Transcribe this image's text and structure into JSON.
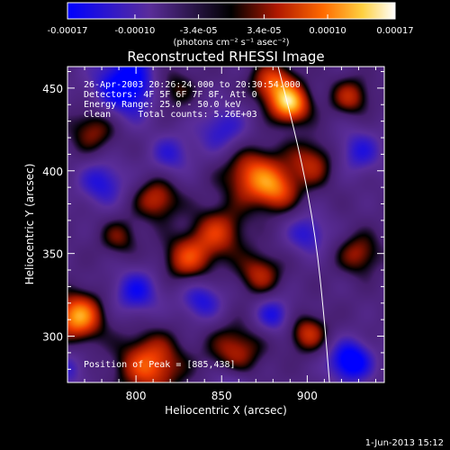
{
  "colorbar": {
    "tick_labels": [
      "-0.00017",
      "-0.00010",
      "-3.4e-05",
      "3.4e-05",
      "0.00010",
      "0.00017"
    ],
    "tick_values": [
      -0.00017,
      -0.0001,
      -3.4e-05,
      3.4e-05,
      0.0001,
      0.00017
    ],
    "range": [
      -0.00017,
      0.00017
    ],
    "units_label": "(photons cm⁻² s⁻¹ asec⁻²)"
  },
  "plot": {
    "title": "Reconstructed RHESSI Image",
    "info_lines": [
      "26-Apr-2003 20:26:24.000 to 20:30:54.000",
      "Detectors: 4F 5F 6F 7F 8F, Att 0",
      "Energy Range: 25.0 - 50.0 keV",
      "Clean     Total counts: 5.26E+03"
    ],
    "peak_label": "Position of Peak = [885,438]"
  },
  "chart_data": {
    "type": "heatmap",
    "title": "Reconstructed RHESSI Image",
    "xlabel": "Heliocentric X (arcsec)",
    "ylabel": "Heliocentric Y (arcsec)",
    "xlim": [
      760,
      945
    ],
    "ylim": [
      272,
      463
    ],
    "x_ticks": [
      800,
      850,
      900
    ],
    "x_tick_labels": [
      "800",
      "850",
      "900"
    ],
    "y_ticks": [
      300,
      350,
      400,
      450
    ],
    "y_tick_labels": [
      "300",
      "350",
      "400",
      "450"
    ],
    "peak_position": [
      885,
      438
    ],
    "limb_curve": [
      [
        883,
        463
      ],
      [
        896,
        410
      ],
      [
        905,
        360
      ],
      [
        910,
        310
      ],
      [
        913,
        272
      ]
    ],
    "colormap": [
      "#0000ff",
      "#5a2d9a",
      "#000000",
      "#b01800",
      "#ff6a00",
      "#ffd040",
      "#ffffff"
    ],
    "sources": [
      {
        "x": 890,
        "y": 440,
        "amp": 1.0,
        "r": 8
      },
      {
        "x": 880,
        "y": 453,
        "amp": 0.75,
        "r": 9
      },
      {
        "x": 868,
        "y": 398,
        "amp": 0.75,
        "r": 12
      },
      {
        "x": 882,
        "y": 388,
        "amp": 0.6,
        "r": 9
      },
      {
        "x": 902,
        "y": 405,
        "amp": 0.55,
        "r": 10
      },
      {
        "x": 812,
        "y": 383,
        "amp": 0.6,
        "r": 9
      },
      {
        "x": 848,
        "y": 363,
        "amp": 0.6,
        "r": 11
      },
      {
        "x": 830,
        "y": 347,
        "amp": 0.65,
        "r": 10
      },
      {
        "x": 872,
        "y": 338,
        "amp": 0.55,
        "r": 9
      },
      {
        "x": 766,
        "y": 312,
        "amp": 1.0,
        "r": 10
      },
      {
        "x": 808,
        "y": 283,
        "amp": 0.8,
        "r": 13
      },
      {
        "x": 858,
        "y": 292,
        "amp": 0.55,
        "r": 11
      },
      {
        "x": 900,
        "y": 302,
        "amp": 0.6,
        "r": 8
      },
      {
        "x": 930,
        "y": 350,
        "amp": 0.5,
        "r": 9
      },
      {
        "x": 775,
        "y": 425,
        "amp": 0.5,
        "r": 10
      },
      {
        "x": 820,
        "y": 450,
        "amp": 0.45,
        "r": 10
      },
      {
        "x": 925,
        "y": 445,
        "amp": 0.55,
        "r": 8
      },
      {
        "x": 790,
        "y": 360,
        "amp": 0.4,
        "r": 8
      },
      {
        "x": 795,
        "y": 452,
        "amp": -0.9,
        "r": 14
      },
      {
        "x": 780,
        "y": 393,
        "amp": -0.55,
        "r": 10
      },
      {
        "x": 800,
        "y": 327,
        "amp": -0.6,
        "r": 10
      },
      {
        "x": 838,
        "y": 322,
        "amp": -0.55,
        "r": 9
      },
      {
        "x": 900,
        "y": 362,
        "amp": -0.5,
        "r": 9
      },
      {
        "x": 930,
        "y": 412,
        "amp": -0.5,
        "r": 10
      },
      {
        "x": 925,
        "y": 285,
        "amp": -0.9,
        "r": 9
      },
      {
        "x": 880,
        "y": 313,
        "amp": -0.55,
        "r": 8
      },
      {
        "x": 850,
        "y": 425,
        "amp": -0.5,
        "r": 11
      },
      {
        "x": 760,
        "y": 280,
        "amp": -0.4,
        "r": 8
      },
      {
        "x": 820,
        "y": 410,
        "amp": -0.45,
        "r": 9
      },
      {
        "x": 855,
        "y": 270,
        "amp": -0.4,
        "r": 8
      }
    ]
  },
  "footer": {
    "timestamp": "1-Jun-2013 15:12"
  }
}
